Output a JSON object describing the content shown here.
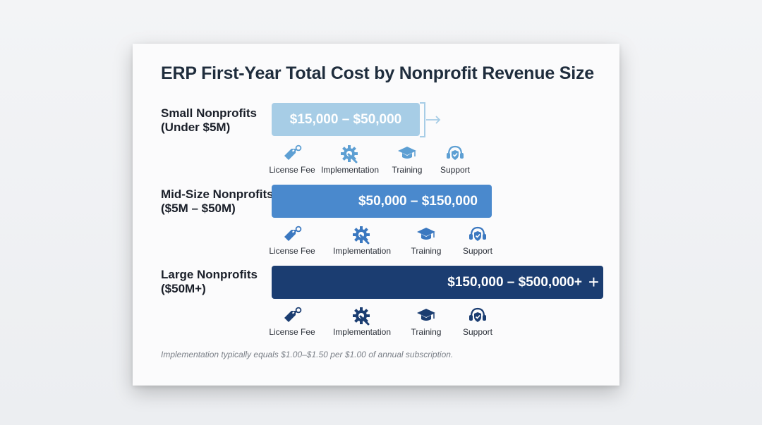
{
  "chart_data": {
    "type": "bar",
    "orientation": "horizontal",
    "title": "ERP First-Year Total Cost by Nonprofit Revenue Size",
    "categories": [
      "Small Nonprofits (Under $5M)",
      "Mid-Size Nonprofits ($5M – $50M)",
      "Large Nonprofits ($50M+)"
    ],
    "tiers": [
      {
        "label_line1": "Small Nonprofits",
        "label_line2": "(Under $5M)",
        "range_label": "$15,000 – $50,000",
        "min": 15000,
        "max": 50000,
        "color": "#a7cde6",
        "text_color": "#ffffff",
        "components": [
          "License Fee",
          "Implementation",
          "Training",
          "Support"
        ]
      },
      {
        "label_line1": "Mid-Size Nonprofits",
        "label_line2": "($5M – $50M)",
        "range_label": "$50,000 – $150,000",
        "min": 50000,
        "max": 150000,
        "color": "#4a89cd",
        "text_color": "#ffffff",
        "components": [
          "License Fee",
          "Implementation",
          "Training",
          "Support"
        ]
      },
      {
        "label_line1": "Large Nonprofits",
        "label_line2": "($50M+)",
        "range_label": "$150,000 – $500,000+",
        "range_suffix": "+",
        "min": 150000,
        "max": 500000,
        "color": "#1b3d71",
        "text_color": "#ffffff",
        "components": [
          "License Fee",
          "Implementation",
          "Training",
          "Support"
        ]
      }
    ],
    "icon_names": [
      "tag-key-icon",
      "gear-wrench-icon",
      "graduation-cap-icon",
      "headset-shield-icon"
    ],
    "footnote": "Implementation typically equals $1.00–$1.50 per $1.00 of annual subscription.",
    "grid": false,
    "legend": "none"
  }
}
